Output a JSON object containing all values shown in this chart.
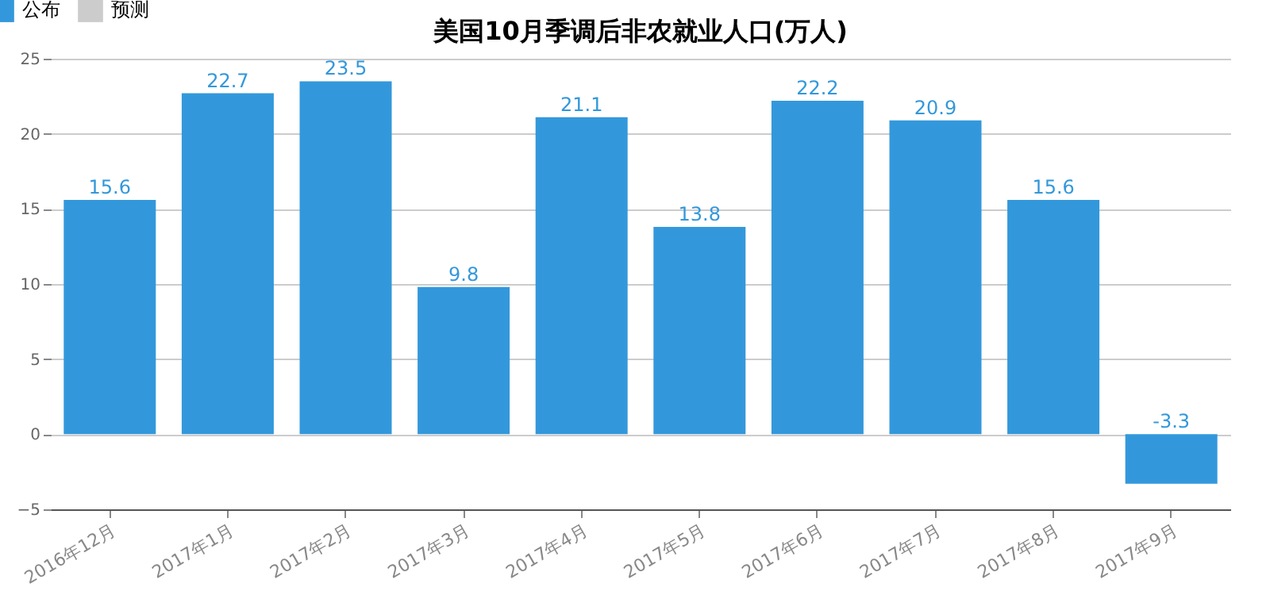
{
  "chart_data": {
    "type": "bar",
    "title": "美国10月季调后非农就业人口(万人)",
    "categories": [
      "2016年12月",
      "2017年1月",
      "2017年2月",
      "2017年3月",
      "2017年4月",
      "2017年5月",
      "2017年6月",
      "2017年7月",
      "2017年8月",
      "2017年9月"
    ],
    "series": [
      {
        "name": "公布",
        "color": "#3398db",
        "values": [
          15.6,
          22.7,
          23.5,
          9.8,
          21.1,
          13.8,
          22.2,
          20.9,
          15.6,
          -3.3
        ]
      },
      {
        "name": "预测",
        "color": "#cccccc",
        "values": [
          null,
          null,
          null,
          null,
          null,
          null,
          null,
          null,
          null,
          null
        ]
      }
    ],
    "ylim": [
      -5,
      25
    ],
    "yticks": [
      -5,
      0,
      5,
      10,
      15,
      20,
      25
    ],
    "grid": "y",
    "legend": "top left",
    "data_labels": true
  }
}
